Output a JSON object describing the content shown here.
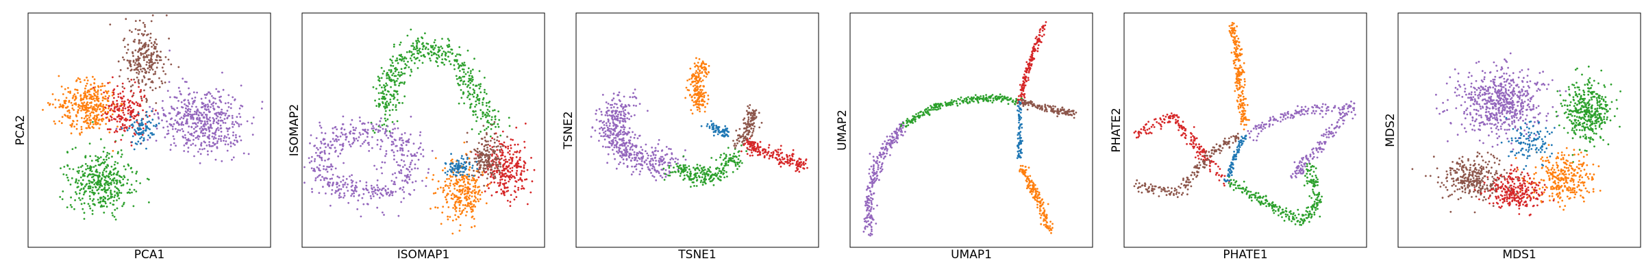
{
  "colors": {
    "blue": "#1f77b4",
    "orange": "#ff7f0e",
    "green": "#2ca02c",
    "red": "#d62728",
    "purple": "#9467bd",
    "brown": "#8c564b"
  },
  "chart_data": [
    {
      "type": "scatter",
      "title": "",
      "xlabel": "PCA1",
      "ylabel": "PCA2",
      "ticks": false,
      "grid": false,
      "legend": "none",
      "clusters": [
        {
          "color": "purple",
          "center": [
            0.72,
            0.46
          ],
          "spread": [
            0.16,
            0.13
          ],
          "n": 900
        },
        {
          "color": "green",
          "center": [
            0.3,
            0.72
          ],
          "spread": [
            0.12,
            0.12
          ],
          "n": 700
        },
        {
          "color": "orange",
          "center": [
            0.25,
            0.4
          ],
          "spread": [
            0.11,
            0.1
          ],
          "n": 650
        },
        {
          "color": "brown",
          "center": [
            0.48,
            0.2
          ],
          "spread": [
            0.08,
            0.13
          ],
          "n": 450
        },
        {
          "color": "red",
          "center": [
            0.4,
            0.42
          ],
          "spread": [
            0.08,
            0.1
          ],
          "n": 350
        },
        {
          "color": "blue",
          "center": [
            0.47,
            0.5
          ],
          "spread": [
            0.05,
            0.06
          ],
          "n": 150
        }
      ]
    },
    {
      "type": "scatter",
      "title": "",
      "xlabel": "ISOMAP1",
      "ylabel": "ISOMAP2",
      "ticks": false,
      "grid": false,
      "legend": "none",
      "clusters": [
        {
          "color": "green",
          "path": [
            [
              0.34,
              0.46
            ],
            [
              0.37,
              0.25
            ],
            [
              0.48,
              0.14
            ],
            [
              0.62,
              0.18
            ],
            [
              0.72,
              0.35
            ],
            [
              0.78,
              0.48
            ]
          ],
          "width": 0.05,
          "n": 900
        },
        {
          "color": "purple",
          "ring": [
            0.26,
            0.64
          ],
          "radius": [
            0.18,
            0.14
          ],
          "width": 0.045,
          "n": 900
        },
        {
          "color": "red",
          "center": [
            0.84,
            0.66
          ],
          "spread": [
            0.09,
            0.1
          ],
          "n": 500
        },
        {
          "color": "orange",
          "center": [
            0.66,
            0.76
          ],
          "spread": [
            0.08,
            0.11
          ],
          "n": 500
        },
        {
          "color": "brown",
          "center": [
            0.76,
            0.62
          ],
          "spread": [
            0.06,
            0.08
          ],
          "n": 300
        },
        {
          "color": "blue",
          "center": [
            0.65,
            0.66
          ],
          "spread": [
            0.05,
            0.04
          ],
          "n": 150
        }
      ]
    },
    {
      "type": "scatter",
      "title": "",
      "xlabel": "TSNE1",
      "ylabel": "TSNE2",
      "ticks": false,
      "grid": false,
      "legend": "none",
      "clusters": [
        {
          "color": "purple",
          "path": [
            [
              0.2,
              0.38
            ],
            [
              0.14,
              0.48
            ],
            [
              0.18,
              0.58
            ],
            [
              0.28,
              0.63
            ],
            [
              0.4,
              0.64
            ]
          ],
          "width": 0.06,
          "n": 900
        },
        {
          "color": "green",
          "path": [
            [
              0.4,
              0.66
            ],
            [
              0.5,
              0.7
            ],
            [
              0.6,
              0.68
            ],
            [
              0.67,
              0.6
            ]
          ],
          "width": 0.035,
          "n": 450
        },
        {
          "color": "orange",
          "path": [
            [
              0.52,
              0.22
            ],
            [
              0.5,
              0.3
            ],
            [
              0.51,
              0.4
            ]
          ],
          "width": 0.03,
          "n": 350
        },
        {
          "color": "blue",
          "path": [
            [
              0.55,
              0.48
            ],
            [
              0.62,
              0.52
            ]
          ],
          "width": 0.02,
          "n": 120
        },
        {
          "color": "brown",
          "path": [
            [
              0.73,
              0.4
            ],
            [
              0.72,
              0.48
            ],
            [
              0.68,
              0.56
            ]
          ],
          "width": 0.025,
          "n": 250
        },
        {
          "color": "red",
          "path": [
            [
              0.7,
              0.56
            ],
            [
              0.8,
              0.6
            ],
            [
              0.94,
              0.65
            ]
          ],
          "width": 0.025,
          "n": 350
        }
      ]
    },
    {
      "type": "scatter",
      "title": "",
      "xlabel": "UMAP1",
      "ylabel": "UMAP2",
      "ticks": false,
      "grid": false,
      "legend": "none",
      "clusters": [
        {
          "color": "purple",
          "path": [
            [
              0.22,
              0.48
            ],
            [
              0.12,
              0.62
            ],
            [
              0.08,
              0.78
            ],
            [
              0.08,
              0.94
            ]
          ],
          "width": 0.02,
          "n": 450
        },
        {
          "color": "green",
          "path": [
            [
              0.22,
              0.48
            ],
            [
              0.35,
              0.4
            ],
            [
              0.5,
              0.37
            ],
            [
              0.62,
              0.36
            ],
            [
              0.7,
              0.38
            ]
          ],
          "width": 0.012,
          "n": 450
        },
        {
          "color": "red",
          "path": [
            [
              0.7,
              0.38
            ],
            [
              0.74,
              0.22
            ],
            [
              0.8,
              0.05
            ]
          ],
          "width": 0.012,
          "n": 300
        },
        {
          "color": "brown",
          "path": [
            [
              0.7,
              0.38
            ],
            [
              0.82,
              0.41
            ],
            [
              0.93,
              0.43
            ]
          ],
          "width": 0.012,
          "n": 250
        },
        {
          "color": "blue",
          "path": [
            [
              0.7,
              0.38
            ],
            [
              0.7,
              0.5
            ],
            [
              0.7,
              0.62
            ]
          ],
          "width": 0.008,
          "n": 150
        },
        {
          "color": "orange",
          "path": [
            [
              0.71,
              0.66
            ],
            [
              0.78,
              0.8
            ],
            [
              0.82,
              0.93
            ]
          ],
          "width": 0.015,
          "n": 300
        }
      ]
    },
    {
      "type": "scatter",
      "title": "",
      "xlabel": "PHATE1",
      "ylabel": "PHATE2",
      "ticks": false,
      "grid": false,
      "legend": "none",
      "clusters": [
        {
          "color": "orange",
          "path": [
            [
              0.45,
              0.05
            ],
            [
              0.47,
              0.2
            ],
            [
              0.48,
              0.35
            ],
            [
              0.5,
              0.48
            ]
          ],
          "width": 0.015,
          "n": 400
        },
        {
          "color": "purple",
          "path": [
            [
              0.52,
              0.52
            ],
            [
              0.65,
              0.44
            ],
            [
              0.82,
              0.41
            ],
            [
              0.94,
              0.4
            ],
            [
              0.78,
              0.6
            ],
            [
              0.7,
              0.7
            ]
          ],
          "width": 0.02,
          "n": 500
        },
        {
          "color": "green",
          "path": [
            [
              0.44,
              0.72
            ],
            [
              0.6,
              0.82
            ],
            [
              0.74,
              0.9
            ],
            [
              0.8,
              0.8
            ],
            [
              0.76,
              0.65
            ]
          ],
          "width": 0.02,
          "n": 500
        },
        {
          "color": "red",
          "path": [
            [
              0.05,
              0.52
            ],
            [
              0.2,
              0.44
            ],
            [
              0.26,
              0.52
            ],
            [
              0.42,
              0.72
            ]
          ],
          "width": 0.02,
          "n": 350
        },
        {
          "color": "brown",
          "path": [
            [
              0.05,
              0.74
            ],
            [
              0.22,
              0.77
            ],
            [
              0.36,
              0.6
            ],
            [
              0.47,
              0.52
            ]
          ],
          "width": 0.02,
          "n": 350
        },
        {
          "color": "blue",
          "path": [
            [
              0.5,
              0.52
            ],
            [
              0.46,
              0.6
            ],
            [
              0.42,
              0.72
            ]
          ],
          "width": 0.01,
          "n": 150
        }
      ]
    },
    {
      "type": "scatter",
      "title": "",
      "xlabel": "MDS1",
      "ylabel": "MDS2",
      "ticks": false,
      "grid": false,
      "legend": "none",
      "clusters": [
        {
          "color": "purple",
          "center": [
            0.42,
            0.38
          ],
          "spread": [
            0.16,
            0.13
          ],
          "n": 1100
        },
        {
          "color": "green",
          "center": [
            0.78,
            0.42
          ],
          "spread": [
            0.09,
            0.12
          ],
          "n": 700
        },
        {
          "color": "orange",
          "center": [
            0.68,
            0.7
          ],
          "spread": [
            0.12,
            0.1
          ],
          "n": 550
        },
        {
          "color": "brown",
          "center": [
            0.3,
            0.7
          ],
          "spread": [
            0.12,
            0.08
          ],
          "n": 550
        },
        {
          "color": "red",
          "center": [
            0.48,
            0.76
          ],
          "spread": [
            0.1,
            0.07
          ],
          "n": 500
        },
        {
          "color": "blue",
          "center": [
            0.55,
            0.55
          ],
          "spread": [
            0.08,
            0.08
          ],
          "n": 200
        }
      ]
    }
  ]
}
